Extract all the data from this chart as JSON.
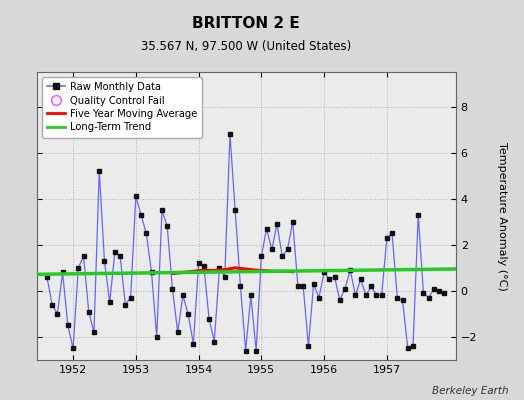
{
  "title": "BRITTON 2 E",
  "subtitle": "35.567 N, 97.500 W (United States)",
  "ylabel": "Temperature Anomaly (°C)",
  "attribution": "Berkeley Earth",
  "bg_color": "#d8d8d8",
  "plot_bg_color": "#ebebeb",
  "xlim": [
    1951.42,
    1958.1
  ],
  "ylim": [
    -3.0,
    9.5
  ],
  "yticks": [
    -2,
    0,
    2,
    4,
    6,
    8
  ],
  "xticks": [
    1952,
    1953,
    1954,
    1955,
    1956,
    1957
  ],
  "raw_x": [
    1951.583,
    1951.667,
    1951.75,
    1951.833,
    1951.917,
    1952.0,
    1952.083,
    1952.167,
    1952.25,
    1952.333,
    1952.417,
    1952.5,
    1952.583,
    1952.667,
    1952.75,
    1952.833,
    1952.917,
    1953.0,
    1953.083,
    1953.167,
    1953.25,
    1953.333,
    1953.417,
    1953.5,
    1953.583,
    1953.667,
    1953.75,
    1953.833,
    1953.917,
    1954.0,
    1954.083,
    1954.167,
    1954.25,
    1954.333,
    1954.417,
    1954.5,
    1954.583,
    1954.667,
    1954.75,
    1954.833,
    1954.917,
    1955.0,
    1955.083,
    1955.167,
    1955.25,
    1955.333,
    1955.417,
    1955.5,
    1955.583,
    1955.667,
    1955.75,
    1955.833,
    1955.917,
    1956.0,
    1956.083,
    1956.167,
    1956.25,
    1956.333,
    1956.417,
    1956.5,
    1956.583,
    1956.667,
    1956.75,
    1956.833,
    1956.917,
    1957.0,
    1957.083,
    1957.167,
    1957.25,
    1957.333,
    1957.417,
    1957.5,
    1957.583,
    1957.667,
    1957.75,
    1957.833,
    1957.917
  ],
  "raw_y": [
    0.6,
    -0.6,
    -1.0,
    0.8,
    -1.5,
    -2.5,
    1.0,
    1.5,
    -0.9,
    -1.8,
    5.2,
    1.3,
    -0.5,
    1.7,
    1.5,
    -0.6,
    -0.3,
    4.1,
    3.3,
    2.5,
    0.8,
    -2.0,
    3.5,
    2.8,
    0.1,
    -1.8,
    -0.2,
    -1.0,
    -2.3,
    1.2,
    1.1,
    -1.2,
    -2.2,
    1.0,
    0.6,
    6.8,
    3.5,
    0.2,
    -2.6,
    -0.2,
    -2.6,
    1.5,
    2.7,
    1.8,
    2.9,
    1.5,
    1.8,
    3.0,
    0.2,
    0.2,
    -2.4,
    0.3,
    -0.3,
    0.8,
    0.5,
    0.6,
    -0.4,
    0.1,
    0.9,
    -0.2,
    0.5,
    -0.2,
    0.2,
    -0.2,
    -0.2,
    2.3,
    2.5,
    -0.3,
    -0.4,
    -2.5,
    -2.4,
    3.3,
    -0.1,
    -0.3,
    0.1,
    0.0,
    -0.1
  ],
  "moving_avg_x": [
    1953.583,
    1953.75,
    1953.917,
    1954.083,
    1954.25,
    1954.417,
    1954.583,
    1954.75,
    1954.917,
    1955.083,
    1955.25,
    1955.417,
    1955.5
  ],
  "moving_avg_y": [
    0.75,
    0.8,
    0.85,
    0.9,
    0.88,
    0.92,
    1.0,
    0.95,
    0.9,
    0.87,
    0.85,
    0.85,
    0.83
  ],
  "trend_x": [
    1951.42,
    1958.1
  ],
  "trend_y": [
    0.72,
    0.95
  ],
  "raw_color": "#6666ff",
  "raw_marker_color": "#111111",
  "moving_avg_color": "#ff0000",
  "trend_color": "#22cc22",
  "legend_marker_edge_color": "#ff44ff",
  "legend_raw_color": "#0000cc"
}
